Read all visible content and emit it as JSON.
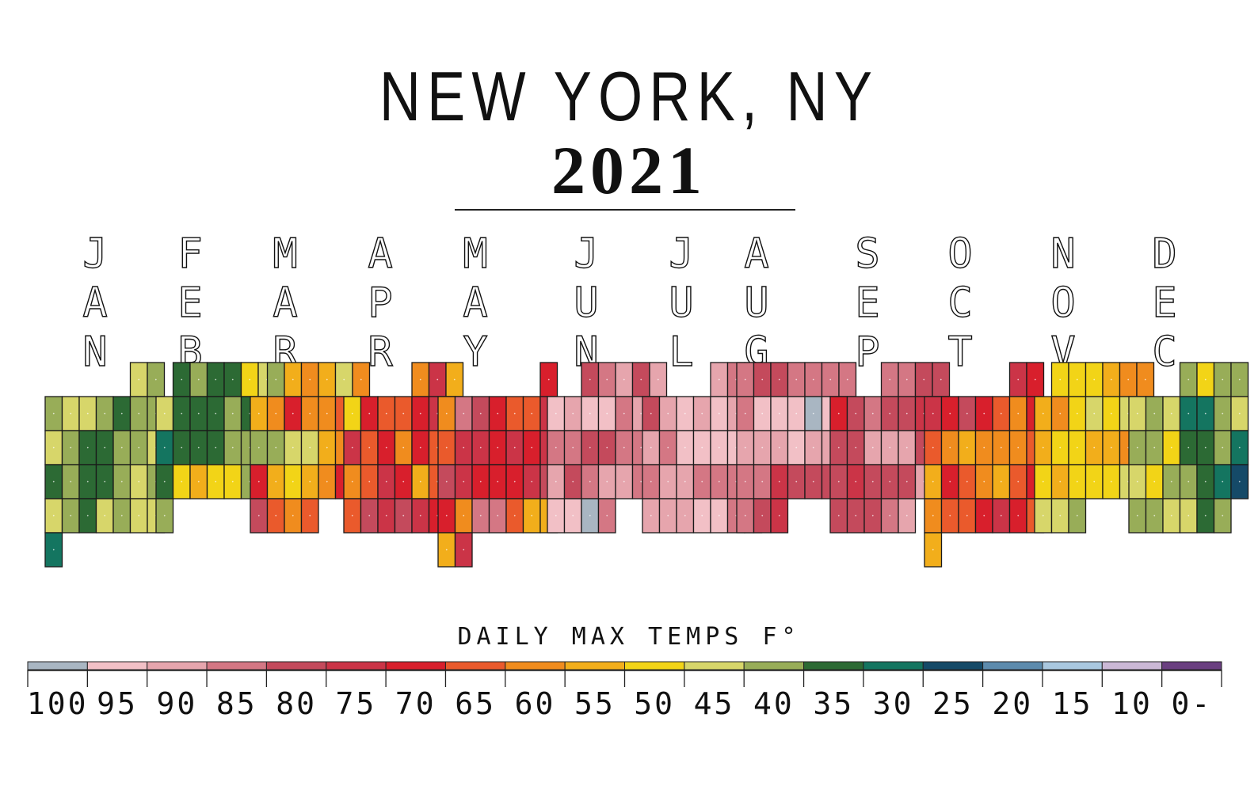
{
  "title": "NEW YORK, NY",
  "year": "2021",
  "chart_data": {
    "type": "heatmap",
    "title": "NEW YORK, NY 2021",
    "subtitle": "DAILY MAX TEMPS F°",
    "months": [
      {
        "letters": [
          "J",
          "A",
          "N"
        ]
      },
      {
        "letters": [
          "F",
          "E",
          "B"
        ]
      },
      {
        "letters": [
          "M",
          "A",
          "R"
        ]
      },
      {
        "letters": [
          "A",
          "P",
          "R"
        ]
      },
      {
        "letters": [
          "M",
          "A",
          "Y"
        ]
      },
      {
        "letters": [
          "J",
          "U",
          "N"
        ]
      },
      {
        "letters": [
          "J",
          "U",
          "L"
        ]
      },
      {
        "letters": [
          "A",
          "U",
          "G"
        ]
      },
      {
        "letters": [
          "S",
          "E",
          "P"
        ]
      },
      {
        "letters": [
          "O",
          "C",
          "T"
        ]
      },
      {
        "letters": [
          "N",
          "O",
          "V"
        ]
      },
      {
        "letters": [
          "D",
          "E",
          "C"
        ]
      }
    ],
    "monthly_max_temps_f": [
      [
        44,
        38,
        36,
        42,
        41,
        38,
        34,
        37,
        37,
        42,
        40,
        35,
        31,
        38,
        40,
        43,
        35,
        38,
        35,
        33,
        38,
        42,
        40,
        41,
        36,
        34,
        42,
        38,
        43,
        44,
        26
      ],
      [
        33,
        40,
        35,
        31,
        47,
        44,
        42,
        34,
        34,
        33,
        38,
        32,
        35,
        28,
        31,
        33,
        35,
        36,
        38,
        36,
        33,
        48,
        53,
        46,
        47,
        36,
        37,
        38
      ],
      [
        36,
        52,
        57,
        53,
        45,
        58,
        54,
        59,
        67,
        60,
        58,
        62,
        44,
        38,
        40,
        41,
        43,
        52,
        56,
        60,
        66,
        55,
        48,
        51,
        58,
        69,
        72,
        78,
        61,
        58,
        65
      ],
      [
        56,
        73,
        52,
        49,
        67,
        61,
        65,
        70,
        72,
        77,
        74,
        62,
        66,
        59,
        68,
        62,
        55,
        58,
        64,
        74,
        70,
        52,
        61,
        56,
        64,
        79,
        72,
        77,
        71,
        66
      ],
      [
        66,
        58,
        82,
        76,
        68,
        65,
        62,
        72,
        64,
        72,
        73,
        66,
        71,
        70,
        74,
        78,
        75,
        70,
        68,
        70,
        74,
        78,
        66,
        60,
        85,
        83,
        62,
        54,
        52,
        55,
        75
      ],
      [
        78,
        85,
        87,
        80,
        90,
        92,
        88,
        92,
        94,
        83,
        86,
        82,
        85,
        81,
        80,
        76,
        81,
        84,
        88,
        90,
        80,
        82,
        86,
        88,
        85,
        99,
        95,
        92,
        98,
        83
      ],
      [
        86,
        83,
        82,
        80,
        90,
        91,
        86,
        92,
        89,
        82,
        88,
        85,
        92,
        91,
        93,
        91,
        90,
        84,
        88,
        89,
        82,
        85,
        81,
        88,
        86,
        88,
        90,
        92,
        92,
        82,
        81
      ],
      [
        84,
        76,
        80,
        82,
        84,
        85,
        83,
        82,
        91,
        92,
        94,
        96,
        95,
        93,
        86,
        90,
        89,
        91,
        89,
        86,
        88,
        83,
        82,
        75,
        76,
        79,
        80,
        85,
        83,
        80,
        71
      ],
      [
        84,
        82,
        76,
        76,
        70,
        80,
        82,
        78,
        77,
        74,
        87,
        80,
        78,
        86,
        86,
        87,
        80,
        84,
        79,
        74,
        76,
        76,
        79,
        86,
        86,
        77,
        78,
        80,
        82,
        88
      ],
      [
        74,
        70,
        71,
        70,
        76,
        68,
        62,
        58,
        70,
        64,
        60,
        54,
        58,
        59,
        57,
        63,
        55,
        67,
        65,
        56,
        54,
        61,
        68,
        58,
        62,
        64,
        66,
        72,
        70,
        61,
        55
      ],
      [
        48,
        47,
        49,
        55,
        56,
        60,
        53,
        59,
        46,
        42,
        48,
        44,
        52,
        54,
        47,
        48,
        53,
        55,
        57,
        49,
        47,
        52,
        50,
        48,
        47,
        43,
        40,
        41,
        45,
        37
      ],
      [
        36,
        46,
        39,
        40,
        43,
        38,
        45,
        30,
        28,
        37,
        42,
        39,
        36,
        46,
        31,
        32,
        38,
        26,
        45,
        50,
        37,
        40,
        31,
        28,
        24,
        39,
        40,
        42,
        41,
        35,
        37
      ]
    ],
    "legend": {
      "ticks": [
        "100",
        "95",
        "90",
        "85",
        "80",
        "75",
        "70",
        "65",
        "60",
        "55",
        "50",
        "45",
        "40",
        "35",
        "30",
        "25",
        "20",
        "15",
        "10",
        "0-"
      ],
      "colors": [
        "#a9b6c2",
        "#f2c0c6",
        "#e6a5ad",
        "#d47784",
        "#c44a5c",
        "#cb3447",
        "#d81f2c",
        "#ea5a2c",
        "#f08c1e",
        "#f2ae1b",
        "#f2d417",
        "#d7d66a",
        "#98ad58",
        "#2c6a34",
        "#147560",
        "#154a68",
        "#5d8bad",
        "#a9c7df",
        "#cbb8d6",
        "#6a3f80"
      ]
    }
  }
}
